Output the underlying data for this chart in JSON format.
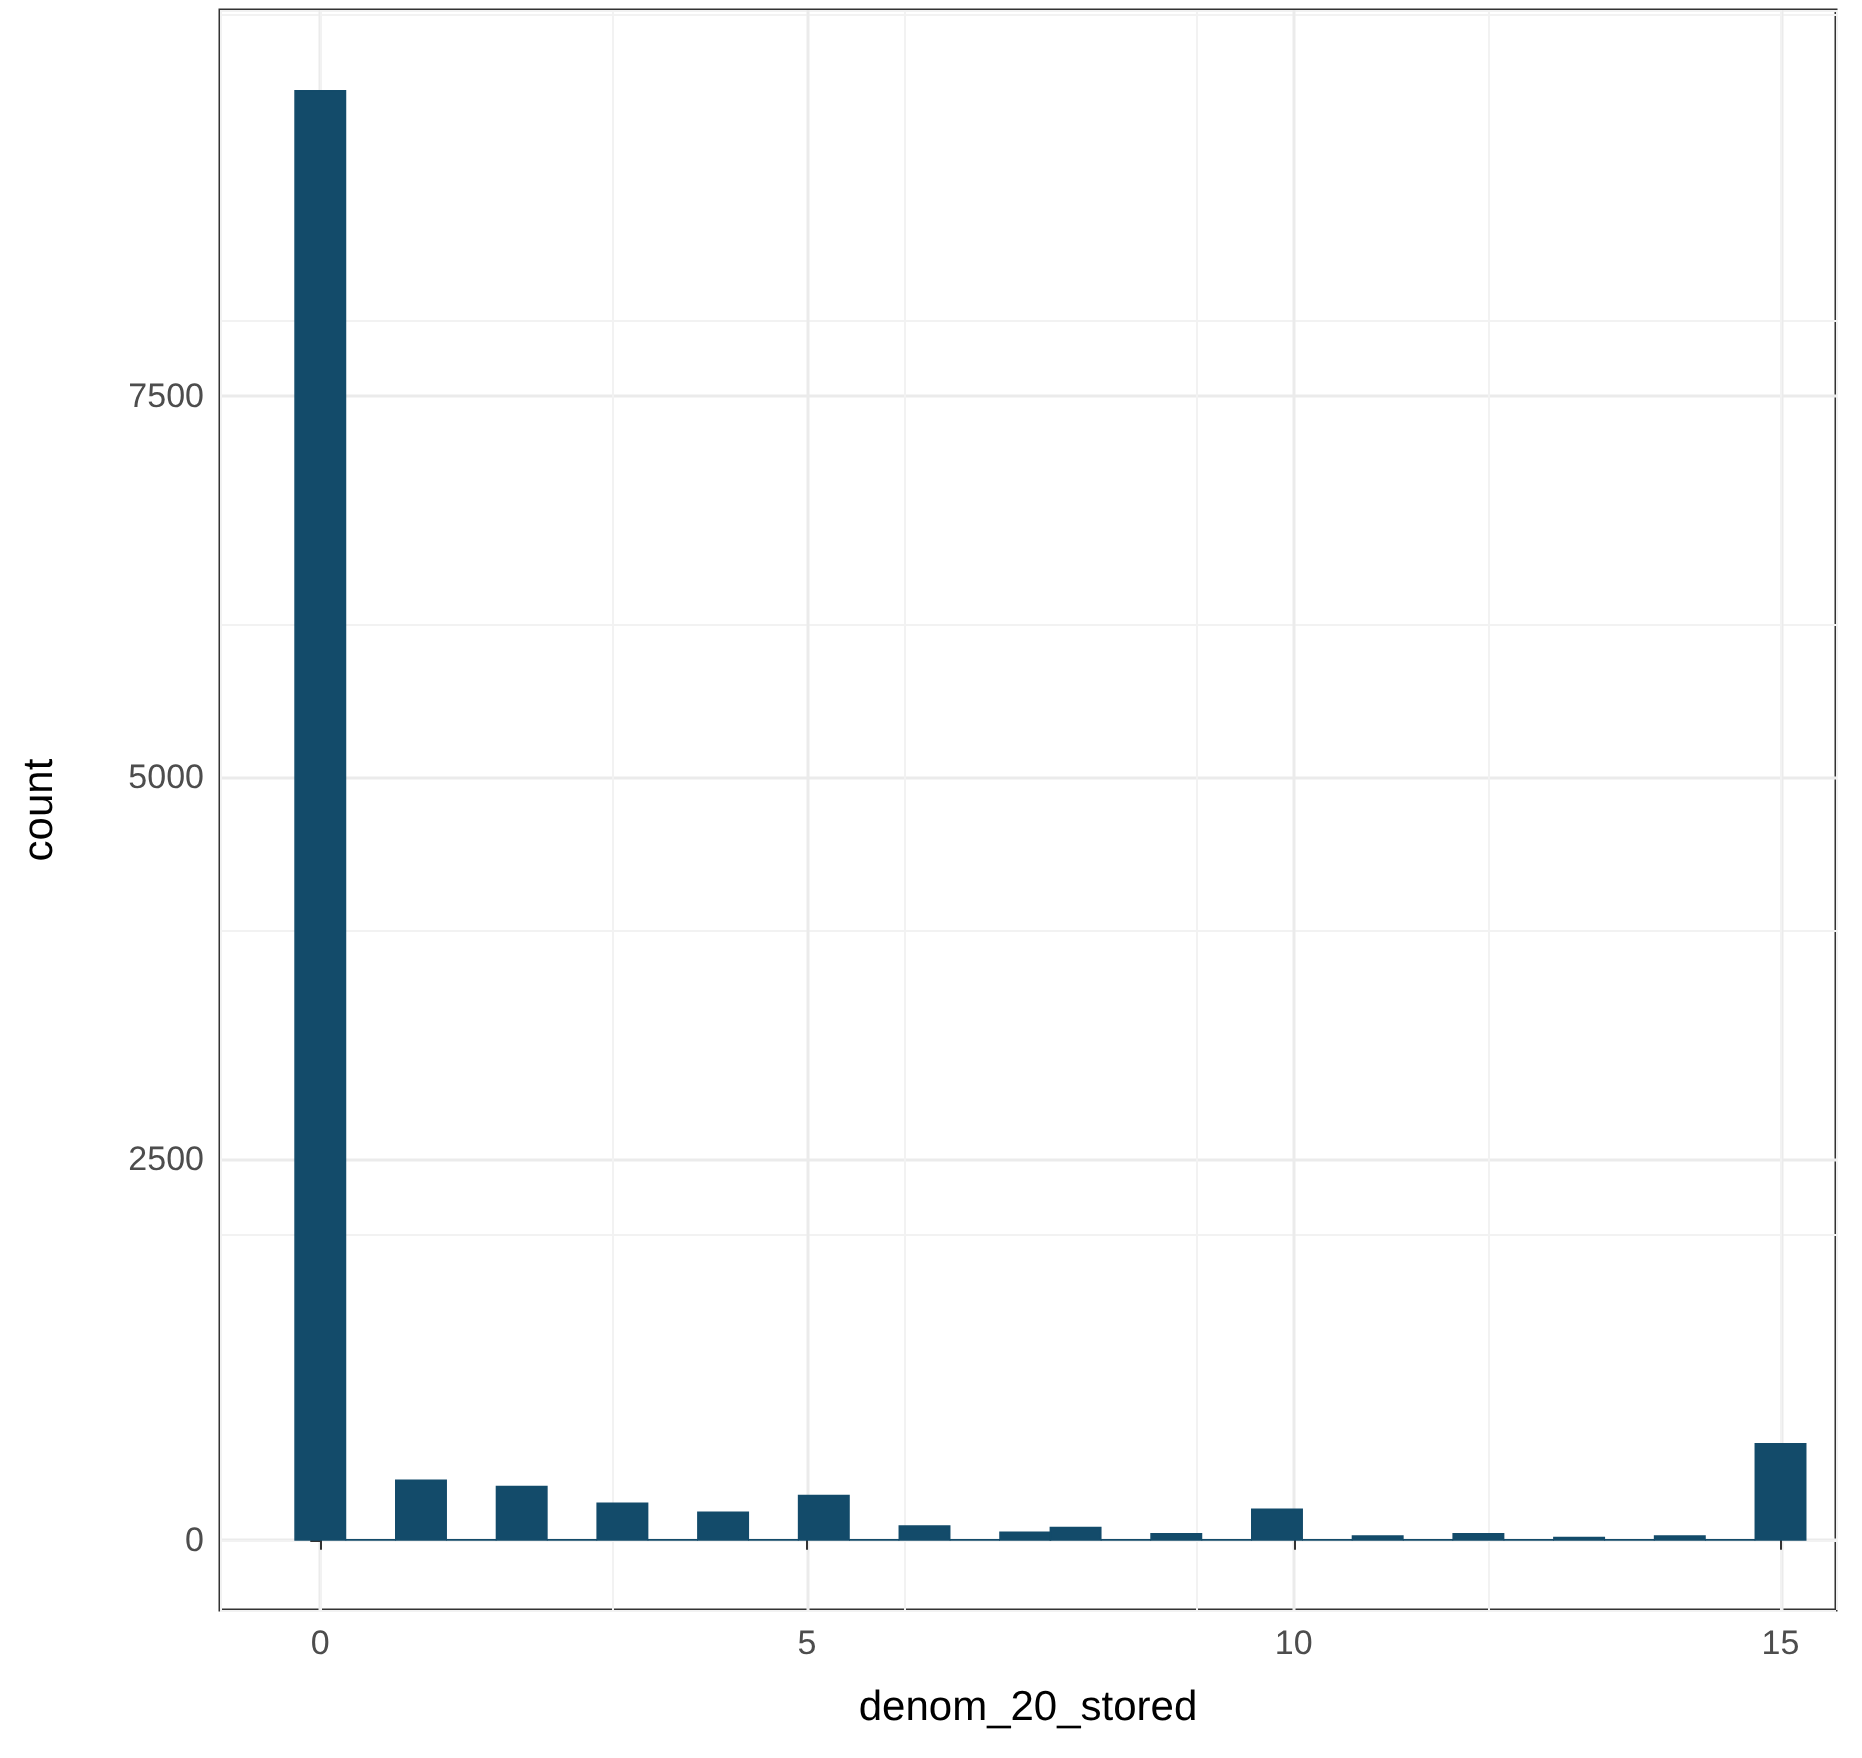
{
  "chart_data": {
    "type": "histogram",
    "xlabel": "denom_20_stored",
    "ylabel": "count",
    "bins": [
      -0.2586,
      0.2586,
      0.7759,
      1.2931,
      1.8103,
      2.3276,
      2.8448,
      3.3621,
      3.8793,
      4.3966,
      4.9138,
      5.431,
      5.9483,
      6.4655,
      6.9828,
      7.5,
      8.0172,
      8.5345,
      9.0517,
      9.569,
      10.0862,
      10.6034,
      11.1207,
      11.6379,
      12.1552,
      12.6724,
      13.1897,
      13.7069,
      14.2241,
      14.7414,
      15.2586
    ],
    "values": [
      9500,
      0,
      390,
      0,
      350,
      0,
      240,
      0,
      180,
      0,
      290,
      0,
      90,
      0,
      50,
      80,
      0,
      40,
      0,
      200,
      0,
      25,
      0,
      40,
      0,
      15,
      0,
      25,
      0,
      630
    ],
    "color": "#134b6a",
    "xlim": [
      -1.03,
      15.57
    ],
    "xticks": [
      0,
      5,
      10,
      15
    ],
    "ylim": [
      -460,
      10030
    ],
    "yticks": [
      0,
      2500,
      5000,
      7500
    ],
    "grid": true
  }
}
